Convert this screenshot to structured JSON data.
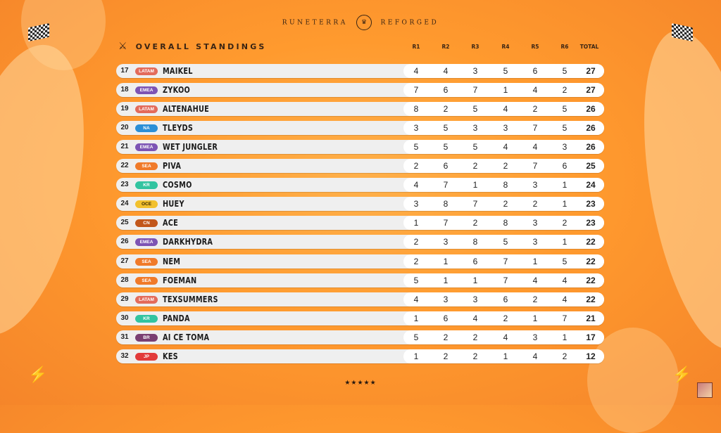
{
  "brand": {
    "left": "RUNETERRA",
    "right": "REFORGED",
    "logo_icon": "crest-icon"
  },
  "header": {
    "title": "OVERALL STANDINGS",
    "icon": "crossed-axes-icon"
  },
  "columns": [
    "R1",
    "R2",
    "R3",
    "R4",
    "R5",
    "R6",
    "TOTAL"
  ],
  "regions": {
    "LATAM": "#e36b5b",
    "EMEA": "#7d54b4",
    "NA": "#2b8fd6",
    "SEA": "#f07a2a",
    "KR": "#32c4a0",
    "OCE": "#f2c12e",
    "CN": "#c2571b",
    "BR": "#7a3f72",
    "JP": "#e23a3a"
  },
  "rows": [
    {
      "pos": "17",
      "region": "LATAM",
      "name": "MAIKEL",
      "r": [
        "4",
        "4",
        "3",
        "5",
        "6",
        "5"
      ],
      "total": "27"
    },
    {
      "pos": "18",
      "region": "EMEA",
      "name": "ZYKOO",
      "r": [
        "7",
        "6",
        "7",
        "1",
        "4",
        "2"
      ],
      "total": "27"
    },
    {
      "pos": "19",
      "region": "LATAM",
      "name": "ALTENAHUE",
      "r": [
        "8",
        "2",
        "5",
        "4",
        "2",
        "5"
      ],
      "total": "26"
    },
    {
      "pos": "20",
      "region": "NA",
      "name": "TLEYDS",
      "r": [
        "3",
        "5",
        "3",
        "3",
        "7",
        "5"
      ],
      "total": "26"
    },
    {
      "pos": "21",
      "region": "EMEA",
      "name": "WET JUNGLER",
      "r": [
        "5",
        "5",
        "5",
        "4",
        "4",
        "3"
      ],
      "total": "26"
    },
    {
      "pos": "22",
      "region": "SEA",
      "name": "PIVA",
      "r": [
        "2",
        "6",
        "2",
        "2",
        "7",
        "6"
      ],
      "total": "25"
    },
    {
      "pos": "23",
      "region": "KR",
      "name": "COSMO",
      "r": [
        "4",
        "7",
        "1",
        "8",
        "3",
        "1"
      ],
      "total": "24"
    },
    {
      "pos": "24",
      "region": "OCE",
      "name": "HUEY",
      "r": [
        "3",
        "8",
        "7",
        "2",
        "2",
        "1"
      ],
      "total": "23"
    },
    {
      "pos": "25",
      "region": "CN",
      "name": "ACE",
      "r": [
        "1",
        "7",
        "2",
        "8",
        "3",
        "2"
      ],
      "total": "23"
    },
    {
      "pos": "26",
      "region": "EMEA",
      "name": "DARKHYDRA",
      "r": [
        "2",
        "3",
        "8",
        "5",
        "3",
        "1"
      ],
      "total": "22"
    },
    {
      "pos": "27",
      "region": "SEA",
      "name": "NEM",
      "r": [
        "2",
        "1",
        "6",
        "7",
        "1",
        "5"
      ],
      "total": "22"
    },
    {
      "pos": "28",
      "region": "SEA",
      "name": "FOEMAN",
      "r": [
        "5",
        "1",
        "1",
        "7",
        "4",
        "4"
      ],
      "total": "22"
    },
    {
      "pos": "29",
      "region": "LATAM",
      "name": "TEXSUMMERS",
      "r": [
        "4",
        "3",
        "3",
        "6",
        "2",
        "4"
      ],
      "total": "22"
    },
    {
      "pos": "30",
      "region": "KR",
      "name": "PANDA",
      "r": [
        "1",
        "6",
        "4",
        "2",
        "1",
        "7"
      ],
      "total": "21"
    },
    {
      "pos": "31",
      "region": "BR",
      "name": "AI CE TOMA",
      "r": [
        "5",
        "2",
        "2",
        "4",
        "3",
        "1"
      ],
      "total": "17"
    },
    {
      "pos": "32",
      "region": "JP",
      "name": "KES",
      "r": [
        "1",
        "2",
        "2",
        "1",
        "4",
        "2"
      ],
      "total": "12"
    }
  ],
  "footer": {
    "stars": "★★★★★"
  }
}
